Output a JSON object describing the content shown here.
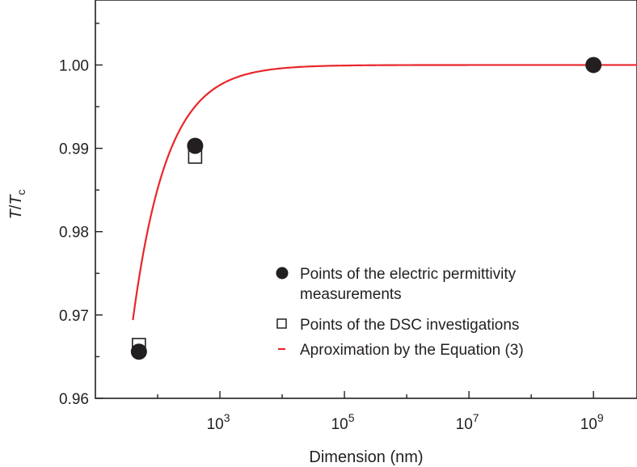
{
  "chart_data": {
    "type": "scatter",
    "xlabel": "Dimension (nm)",
    "ylabel_main": "T",
    "ylabel_sep": "/",
    "ylabel_den": "T",
    "ylabel_sub": "c",
    "xscale": "log",
    "xlim": [
      10,
      5000000000
    ],
    "ylim": [
      0.96,
      1.0078
    ],
    "xticks": [
      {
        "value": 1000,
        "base": "10",
        "exp": "3"
      },
      {
        "value": 100000,
        "base": "10",
        "exp": "5"
      },
      {
        "value": 10000000,
        "base": "10",
        "exp": "7"
      },
      {
        "value": 1000000000,
        "base": "10",
        "exp": "9"
      }
    ],
    "yticks": [
      {
        "value": 0.96,
        "label": "0.96"
      },
      {
        "value": 0.97,
        "label": "0.97"
      },
      {
        "value": 0.98,
        "label": "0.98"
      },
      {
        "value": 0.99,
        "label": "0.99"
      },
      {
        "value": 1.0,
        "label": "1.00"
      }
    ],
    "grid": false,
    "legend_position": "lower-right",
    "series": [
      {
        "name_lines": [
          "Points of the electric permittivity",
          "measurements"
        ],
        "marker": "filled-circle",
        "color": "#231f20",
        "points": [
          {
            "x": 50,
            "y": 0.9656
          },
          {
            "x": 400,
            "y": 0.9903
          },
          {
            "x": 1000000000,
            "y": 1.0
          }
        ]
      },
      {
        "name_lines": [
          "Points of the DSC investigations"
        ],
        "marker": "open-square",
        "color": "#231f20",
        "points": [
          {
            "x": 50,
            "y": 0.9664
          },
          {
            "x": 400,
            "y": 0.989
          }
        ]
      },
      {
        "name_lines": [
          "Aproximation by the Equation (3)"
        ],
        "marker": "line",
        "color": "#e8262b",
        "curve": {
          "x_start": 40,
          "x_end": 5000000000,
          "x_min": 28.5,
          "y_min": 0.96,
          "y_max": 1.0,
          "tau_decades": 0.55
        }
      }
    ]
  }
}
